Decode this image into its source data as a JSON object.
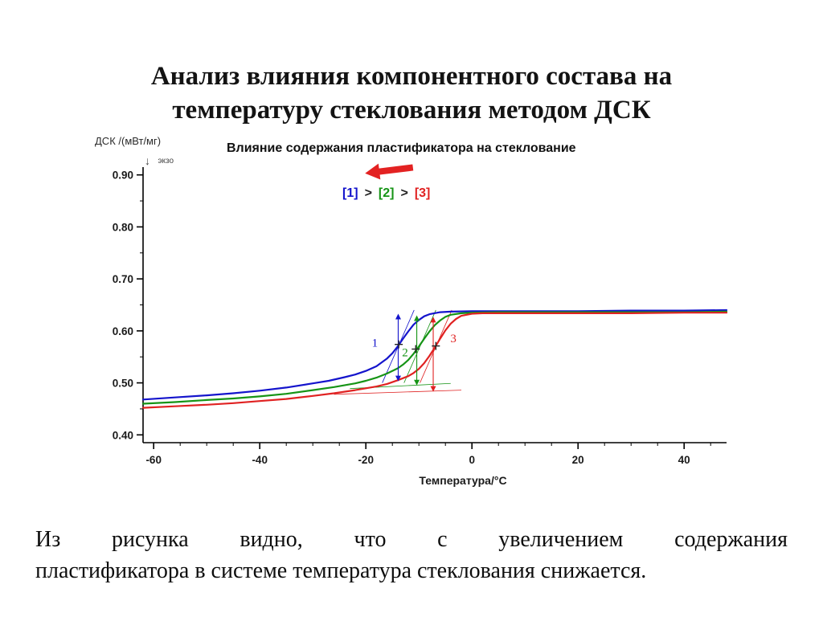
{
  "slide": {
    "title_line1": "Анализ влияния компонентного состава на",
    "title_line2": "температуру стеклования методом ДСК",
    "caption_line1": "Из рисунка видно, что с увеличением содержания",
    "caption_line2": "пластификатора в системе температура стеклования снижается."
  },
  "chart_data": {
    "type": "line",
    "title": "Влияние содержания пластификатора на стеклование",
    "ylabel_header": "ДСК /(мВт/мг)",
    "exo_arrow": "↓",
    "exo_label": "экзо",
    "xlabel": "Температура/°C",
    "xlim": [
      -62,
      48
    ],
    "ylim": [
      0.385,
      0.915
    ],
    "x_ticks": [
      -60,
      -40,
      -20,
      0,
      20,
      40
    ],
    "y_ticks": [
      0.9,
      0.8,
      0.7,
      0.6,
      0.5,
      0.4
    ],
    "grid": false,
    "legend_position": "top-center",
    "decor_arrow_color": "#e32222",
    "axis_color": "#000000",
    "legend_tokens": [
      {
        "text": "[1]",
        "color": "#1414cc"
      },
      {
        "text": ">",
        "color": "#222222"
      },
      {
        "text": "[2]",
        "color": "#169416"
      },
      {
        "text": ">",
        "color": "#222222"
      },
      {
        "text": "[3]",
        "color": "#e02222"
      }
    ],
    "series": [
      {
        "name": "1",
        "color": "#1414cc",
        "points": [
          [
            -62,
            0.468
          ],
          [
            -56,
            0.472
          ],
          [
            -50,
            0.476
          ],
          [
            -45,
            0.48
          ],
          [
            -40,
            0.485
          ],
          [
            -35,
            0.491
          ],
          [
            -30,
            0.499
          ],
          [
            -27,
            0.504
          ],
          [
            -24,
            0.511
          ],
          [
            -22,
            0.516
          ],
          [
            -20,
            0.523
          ],
          [
            -18,
            0.532
          ],
          [
            -16,
            0.547
          ],
          [
            -15,
            0.557
          ],
          [
            -14,
            0.57
          ],
          [
            -13,
            0.585
          ],
          [
            -12,
            0.599
          ],
          [
            -11,
            0.612
          ],
          [
            -10,
            0.621
          ],
          [
            -9,
            0.628
          ],
          [
            -8,
            0.632
          ],
          [
            -6,
            0.636
          ],
          [
            -4,
            0.637
          ],
          [
            0,
            0.638
          ],
          [
            5,
            0.638
          ],
          [
            10,
            0.638
          ],
          [
            20,
            0.638
          ],
          [
            30,
            0.639
          ],
          [
            40,
            0.639
          ],
          [
            48,
            0.64
          ]
        ]
      },
      {
        "name": "2",
        "color": "#169416",
        "points": [
          [
            -62,
            0.46
          ],
          [
            -56,
            0.463
          ],
          [
            -50,
            0.467
          ],
          [
            -45,
            0.47
          ],
          [
            -40,
            0.474
          ],
          [
            -35,
            0.479
          ],
          [
            -30,
            0.486
          ],
          [
            -26,
            0.492
          ],
          [
            -22,
            0.499
          ],
          [
            -20,
            0.504
          ],
          [
            -18,
            0.51
          ],
          [
            -16,
            0.518
          ],
          [
            -14,
            0.528
          ],
          [
            -13,
            0.535
          ],
          [
            -12,
            0.544
          ],
          [
            -11,
            0.556
          ],
          [
            -10,
            0.57
          ],
          [
            -9,
            0.585
          ],
          [
            -8,
            0.599
          ],
          [
            -7,
            0.611
          ],
          [
            -6,
            0.62
          ],
          [
            -5,
            0.627
          ],
          [
            -4,
            0.631
          ],
          [
            -2,
            0.634
          ],
          [
            0,
            0.635
          ],
          [
            5,
            0.636
          ],
          [
            10,
            0.636
          ],
          [
            20,
            0.636
          ],
          [
            30,
            0.636
          ],
          [
            40,
            0.636
          ],
          [
            48,
            0.637
          ]
        ]
      },
      {
        "name": "3",
        "color": "#e02222",
        "points": [
          [
            -62,
            0.452
          ],
          [
            -56,
            0.455
          ],
          [
            -50,
            0.458
          ],
          [
            -45,
            0.461
          ],
          [
            -40,
            0.465
          ],
          [
            -35,
            0.469
          ],
          [
            -30,
            0.475
          ],
          [
            -26,
            0.48
          ],
          [
            -22,
            0.486
          ],
          [
            -18,
            0.493
          ],
          [
            -16,
            0.498
          ],
          [
            -14,
            0.505
          ],
          [
            -12,
            0.513
          ],
          [
            -11,
            0.519
          ],
          [
            -10,
            0.527
          ],
          [
            -9,
            0.538
          ],
          [
            -8,
            0.552
          ],
          [
            -7,
            0.568
          ],
          [
            -6,
            0.585
          ],
          [
            -5,
            0.601
          ],
          [
            -4,
            0.614
          ],
          [
            -3,
            0.623
          ],
          [
            -2,
            0.629
          ],
          [
            0,
            0.633
          ],
          [
            2,
            0.634
          ],
          [
            5,
            0.634
          ],
          [
            10,
            0.634
          ],
          [
            20,
            0.634
          ],
          [
            30,
            0.634
          ],
          [
            40,
            0.635
          ],
          [
            48,
            0.635
          ]
        ]
      }
    ],
    "construction_lines": [
      {
        "color": "#e02222",
        "from": [
          -26,
          0.478
        ],
        "to": [
          -2,
          0.486
        ]
      },
      {
        "color": "#169416",
        "from": [
          -23,
          0.489
        ],
        "to": [
          -4,
          0.499
        ]
      },
      {
        "color": "#1414cc",
        "from": [
          -16.9,
          0.5
        ],
        "to": [
          -10.9,
          0.64
        ]
      },
      {
        "color": "#169416",
        "from": [
          -12.8,
          0.5
        ],
        "to": [
          -6.8,
          0.64
        ]
      },
      {
        "color": "#e02222",
        "from": [
          -9.8,
          0.5
        ],
        "to": [
          -3.8,
          0.64
        ]
      }
    ],
    "arrows": [
      {
        "color": "#1414cc",
        "x": -13.9,
        "y_top": 0.633,
        "y_bottom": 0.503
      },
      {
        "color": "#169416",
        "x": -10.4,
        "y_top": 0.63,
        "y_bottom": 0.495
      },
      {
        "color": "#e02222",
        "x": -7.3,
        "y_top": 0.627,
        "y_bottom": 0.483
      }
    ],
    "markers": [
      {
        "color": "#222222",
        "x": -13.8,
        "y": 0.574
      },
      {
        "color": "#222222",
        "x": -10.6,
        "y": 0.565
      },
      {
        "color": "#222222",
        "x": -6.8,
        "y": 0.571
      }
    ],
    "point_labels": [
      {
        "text": "1",
        "color": "#1414cc",
        "x": -18.3,
        "y": 0.57
      },
      {
        "text": "2",
        "color": "#169416",
        "x": -12.6,
        "y": 0.551
      },
      {
        "text": "3",
        "color": "#e02222",
        "x": -3.5,
        "y": 0.578
      }
    ]
  }
}
